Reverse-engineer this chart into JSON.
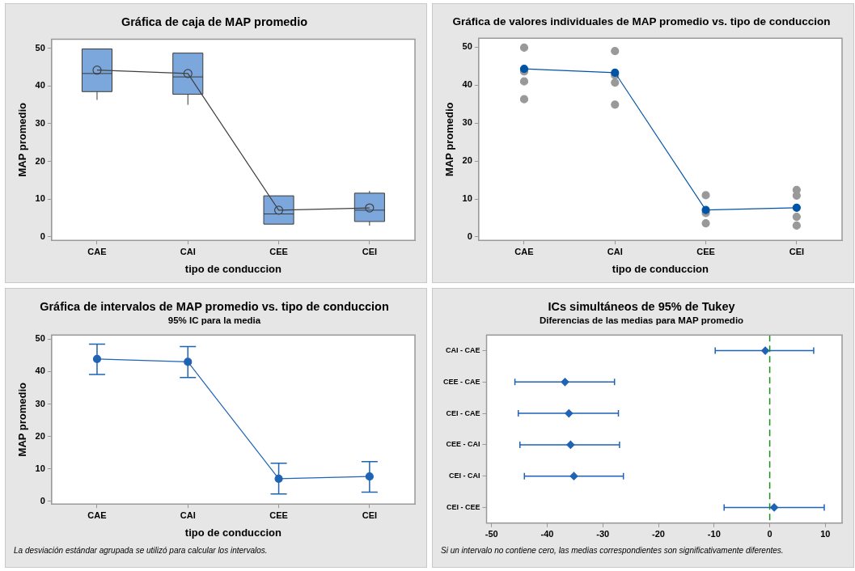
{
  "chart_data": [
    {
      "type": "box",
      "title": "Gráfica de caja de MAP promedio",
      "xlabel": "tipo de conduccion",
      "ylabel": "MAP promedio",
      "categories": [
        "CAE",
        "CAI",
        "CEE",
        "CEI"
      ],
      "ylim": [
        -0.9,
        52.4
      ],
      "yticks": [
        0,
        10,
        20,
        30,
        40,
        50
      ],
      "series": [
        {
          "type": "box",
          "color": "#7ba7dc",
          "boxes": [
            {
              "low": 36.3,
              "q1": 38.5,
              "median": 43.3,
              "q3": 49.8,
              "high": 49.8
            },
            {
              "low": 35.0,
              "q1": 37.8,
              "median": 42.4,
              "q3": 48.7,
              "high": 48.7
            },
            {
              "low": 3.4,
              "q1": 3.4,
              "median": 6.1,
              "q3": 10.9,
              "high": 10.9
            },
            {
              "low": 3.0,
              "q1": 4.1,
              "median": 7.1,
              "q3": 11.6,
              "high": 12.2
            }
          ]
        },
        {
          "type": "line",
          "color": "#404040",
          "marker": "circle",
          "values": [
            44.2,
            43.3,
            7.1,
            7.7
          ]
        }
      ]
    },
    {
      "type": "scatter",
      "title": "Gráfica de valores individuales de MAP promedio vs. tipo de conduccion",
      "xlabel": "tipo de conduccion",
      "ylabel": "MAP promedio",
      "categories": [
        "CAE",
        "CAI",
        "CEE",
        "CEI"
      ],
      "ylim": [
        -0.9,
        52.4
      ],
      "yticks": [
        0,
        10,
        20,
        30,
        40,
        50
      ],
      "marker": "circle",
      "series": [
        {
          "type": "scatter",
          "color": "#999999",
          "x": [
            "CAE",
            "CAE",
            "CAE",
            "CAE",
            "CAI",
            "CAI",
            "CAI",
            "CAI",
            "CEE",
            "CEE",
            "CEE",
            "CEI",
            "CEI",
            "CEI",
            "CEI"
          ],
          "values": [
            49.9,
            43.6,
            41.0,
            36.3,
            49.0,
            42.6,
            40.7,
            34.9,
            11.0,
            6.3,
            3.6,
            12.4,
            10.9,
            5.3,
            3.0
          ]
        },
        {
          "type": "line",
          "color": "#0054a6",
          "values": [
            44.3,
            43.3,
            7.1,
            7.7
          ]
        }
      ]
    },
    {
      "type": "line",
      "title": "Gráfica de intervalos de MAP promedio vs. tipo de conduccion",
      "subtitle": "95% IC para la media",
      "xlabel": "tipo de conduccion",
      "ylabel": "MAP promedio",
      "categories": [
        "CAE",
        "CAI",
        "CEE",
        "CEI"
      ],
      "ylim": [
        -0.9,
        51.3
      ],
      "yticks": [
        0,
        10,
        20,
        30,
        40,
        50
      ],
      "marker": "circle",
      "annotations": [
        "La desviación estándar agrupada se utilizó para calcular los intervalos."
      ],
      "series": [
        {
          "color": "#1f63b5",
          "values": [
            43.9,
            43.0,
            6.9,
            7.6
          ],
          "errors": [
            [
              39.1,
              48.5
            ],
            [
              38.2,
              47.7
            ],
            [
              2.2,
              11.7
            ],
            [
              2.8,
              12.2
            ]
          ]
        }
      ]
    },
    {
      "type": "scatter",
      "orientation": "horizontal",
      "title": "ICs simultáneos de 95% de Tukey",
      "subtitle": "Diferencias de las medias para MAP promedio",
      "categories": [
        "CAI - CAE",
        "CEE - CAE",
        "CEI - CAE",
        "CEE - CAI",
        "CEI - CAI",
        "CEI - CEE"
      ],
      "xlim": [
        -50.9,
        13.0
      ],
      "xticks": [
        -50,
        -40,
        -30,
        -20,
        -10,
        0,
        10
      ],
      "marker": "diamond",
      "annotations": [
        "Si un intervalo no contiene cero, las medias correspondientes son significativamente diferentes."
      ],
      "ref_lines": [
        {
          "axis": "x",
          "value": 0,
          "color": "#1a8f1a",
          "line_style": "dashed"
        }
      ],
      "series": [
        {
          "color": "#1f63b5",
          "values": [
            -0.8,
            -36.8,
            -36.1,
            -35.8,
            -35.2,
            0.8
          ],
          "errors": [
            [
              -9.8,
              7.9
            ],
            [
              -45.8,
              -27.9
            ],
            [
              -45.2,
              -27.2
            ],
            [
              -44.9,
              -27.0
            ],
            [
              -44.1,
              -26.3
            ],
            [
              -8.2,
              9.8
            ]
          ]
        }
      ]
    }
  ]
}
